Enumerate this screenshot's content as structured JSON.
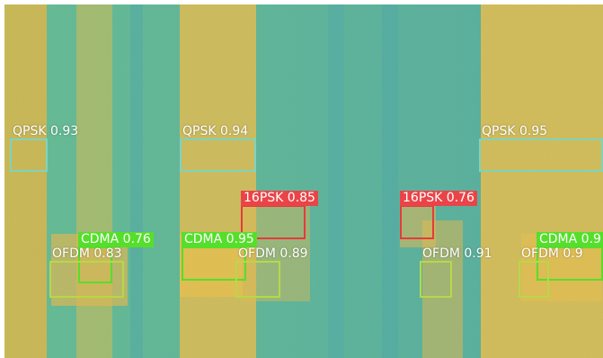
{
  "detections": [
    {
      "class": "QPSK",
      "score": "0.93"
    },
    {
      "class": "QPSK",
      "score": "0.94"
    },
    {
      "class": "QPSK",
      "score": "0.95"
    },
    {
      "class": "16PSK",
      "score": "0.85"
    },
    {
      "class": "16PSK",
      "score": "0.76"
    },
    {
      "class": "CDMA",
      "score": "0.76"
    },
    {
      "class": "CDMA",
      "score": "0.95"
    },
    {
      "class": "CDMA",
      "score": "0.9"
    },
    {
      "class": "OFDM",
      "score": "0.83"
    },
    {
      "class": "OFDM",
      "score": "0.89"
    },
    {
      "class": "OFDM",
      "score": "0.91"
    },
    {
      "class": "OFDM",
      "score": "0.9"
    }
  ],
  "colors": {
    "QPSK": "#7ed3bf",
    "16PSK": "#e53b3b",
    "CDMA": "#55df2b",
    "OFDM": "#b7d84a",
    "background_teal": "#56b79a",
    "background_yellow": "#e6b93b"
  }
}
